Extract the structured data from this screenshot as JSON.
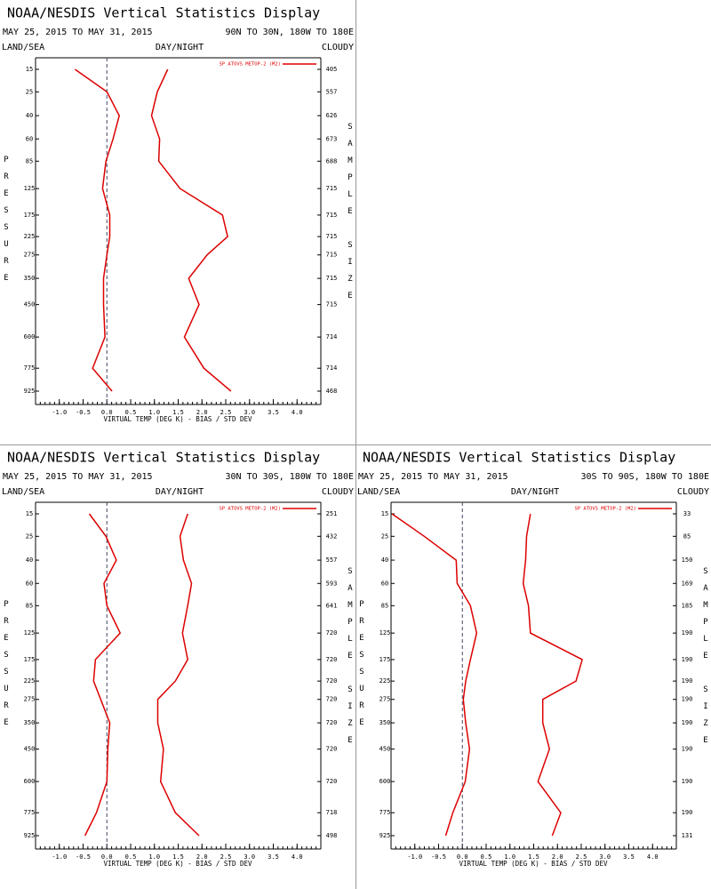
{
  "chart_data": [
    {
      "type": "line",
      "title": "NOAA/NESDIS Vertical Statistics Display",
      "date_range": "MAY 25, 2015 TO MAY 31, 2015",
      "region": "90N TO 30N, 180W TO 180E",
      "land_sea": "LAND/SEA",
      "day_night": "DAY/NIGHT",
      "cloudy": "CLOUDY",
      "y_label": "PRESSURE",
      "y2_label": "SAMPLE SIZE",
      "x_label": "VIRTUAL TEMP (DEG K) - BIAS / STD DEV",
      "legend": "SP ATOVS METOP-2 (M2)",
      "zero_line": true,
      "categories": [
        "15",
        "25",
        "40",
        "60",
        "85",
        "125",
        "175",
        "225",
        "275",
        "350",
        "450",
        "600",
        "775",
        "925"
      ],
      "sample_size": [
        405,
        557,
        626,
        673,
        688,
        715,
        715,
        715,
        715,
        715,
        715,
        714,
        714,
        468
      ],
      "series": [
        {
          "color": "#dd0000",
          "values": [
            -0.67,
            0,
            0.26,
            0.13,
            -0.02,
            -0.09,
            0.06,
            0.06,
            0,
            -0.07,
            -0.07,
            -0.04,
            -0.3,
            0.11
          ]
        },
        {
          "color": "#dd0000",
          "values": [
            1.28,
            1.06,
            0.94,
            1.11,
            1.09,
            1.54,
            2.43,
            2.54,
            2.11,
            1.72,
            1.94,
            1.63,
            2.04,
            2.61
          ]
        }
      ],
      "xlim": [
        -1.5,
        4.5
      ],
      "xticks": [
        {
          "value": -1,
          "label": "-1.0"
        },
        -0.5,
        {
          "value": 0,
          "label": "0.0"
        },
        0.5,
        {
          "value": 1,
          "label": "1.0"
        },
        1.5,
        {
          "value": 2,
          "label": "2.0"
        },
        2.5,
        {
          "value": 3,
          "label": "3.0"
        },
        3.5,
        {
          "value": 4,
          "label": "4.0"
        }
      ]
    },
    {
      "type": "line",
      "title": "NOAA/NESDIS Vertical Statistics Display",
      "date_range": "MAY 25, 2015 TO MAY 31, 2015",
      "region": "30N TO 30S, 180W TO 180E",
      "land_sea": "LAND/SEA",
      "day_night": "DAY/NIGHT",
      "cloudy": "CLOUDY",
      "y_label": "PRESSURE",
      "y2_label": "SAMPLE SIZE",
      "x_label": "VIRTUAL TEMP (DEG K) - BIAS / STD DEV",
      "legend": "SP ATOVS METOP-2 (M2)",
      "zero_line": true,
      "categories": [
        "15",
        "25",
        "40",
        "60",
        "85",
        "125",
        "175",
        "225",
        "275",
        "350",
        "450",
        "600",
        "775",
        "925"
      ],
      "sample_size": [
        251,
        432,
        557,
        593,
        641,
        720,
        720,
        720,
        720,
        720,
        720,
        720,
        718,
        498
      ],
      "series": [
        {
          "color": "#dd0000",
          "values": [
            -0.37,
            -0.02,
            0.2,
            -0.06,
            0,
            0.28,
            -0.24,
            -0.28,
            -0.13,
            0.06,
            0.02,
            0,
            -0.22,
            -0.46
          ]
        },
        {
          "color": "#dd0000",
          "values": [
            1.7,
            1.54,
            1.61,
            1.78,
            1.7,
            1.59,
            1.7,
            1.44,
            1.07,
            1.07,
            1.19,
            1.13,
            1.44,
            1.94
          ]
        }
      ],
      "xlim": [
        -1.5,
        4.5
      ],
      "xticks": [
        {
          "value": -1,
          "label": "-1.0"
        },
        -0.5,
        {
          "value": 0,
          "label": "0.0"
        },
        0.5,
        {
          "value": 1,
          "label": "1.0"
        },
        1.5,
        {
          "value": 2,
          "label": "2.0"
        },
        2.5,
        {
          "value": 3,
          "label": "3.0"
        },
        3.5,
        {
          "value": 4,
          "label": "4.0"
        }
      ]
    },
    {
      "type": "line",
      "title": "NOAA/NESDIS Vertical Statistics Display",
      "date_range": "MAY 25, 2015 TO MAY 31, 2015",
      "region": "30S TO 90S, 180W TO 180E",
      "land_sea": "LAND/SEA",
      "day_night": "DAY/NIGHT",
      "cloudy": "CLOUDY",
      "y_label": "PRESSURE",
      "y2_label": "SAMPLE SIZE",
      "x_label": "VIRTUAL TEMP (DEG K) - BIAS / STD DEV",
      "legend": "SP ATOVS METOP-2 (M2)",
      "zero_line": true,
      "categories": [
        "15",
        "25",
        "40",
        "60",
        "85",
        "125",
        "175",
        "225",
        "275",
        "350",
        "450",
        "600",
        "775",
        "925"
      ],
      "sample_size": [
        33,
        85,
        150,
        169,
        185,
        190,
        190,
        190,
        190,
        190,
        190,
        190,
        190,
        131
      ],
      "series": [
        {
          "color": "#dd0000",
          "values": [
            -1.48,
            -0.8,
            -0.13,
            -0.11,
            0.17,
            0.3,
            0.17,
            0.07,
            0.02,
            0.07,
            0.15,
            0.06,
            -0.2,
            -0.35
          ]
        },
        {
          "color": "#dd0000",
          "values": [
            1.43,
            1.35,
            1.33,
            1.28,
            1.39,
            1.43,
            2.52,
            2.39,
            1.69,
            1.69,
            1.83,
            1.59,
            2.07,
            1.89
          ]
        }
      ],
      "xlim": [
        -1.5,
        4.5
      ],
      "xticks": [
        {
          "value": -1,
          "label": "-1.0"
        },
        -0.5,
        {
          "value": 0,
          "label": "0.0"
        },
        0.5,
        {
          "value": 1,
          "label": "1.0"
        },
        1.5,
        {
          "value": 2,
          "label": "2.0"
        },
        2.5,
        {
          "value": 3,
          "label": "3.0"
        },
        3.5,
        {
          "value": 4,
          "label": "4.0"
        }
      ]
    }
  ]
}
